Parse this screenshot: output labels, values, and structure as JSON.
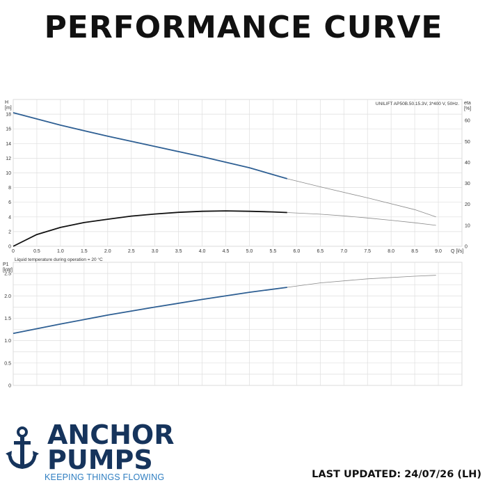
{
  "heading": "PERFORMANCE CURVE",
  "footer": {
    "brand_line1": "ANCHOR",
    "brand_line2": "PUMPS",
    "tagline": "KEEPING THINGS FLOWING",
    "last_updated": "LAST UPDATED: 24/07/26 (LH)",
    "brand_color": "#16345c",
    "tagline_color": "#2f7ec1"
  },
  "chart_data": [
    {
      "type": "line",
      "title": "UNILIFT AP50B.50.15.3V, 3*400 V, 50Hz.",
      "xlabel": "Q [l/s]",
      "ylabel_left_symbol": "H",
      "ylabel_left_unit": "[m]",
      "ylabel_right_symbol": "eta",
      "ylabel_right_unit": "[%]",
      "xlim": [
        0,
        9.5
      ],
      "ylim_left": [
        0,
        20
      ],
      "ylim_right": [
        0,
        70
      ],
      "x_ticks": [
        "0",
        "0.5",
        "1.0",
        "1.5",
        "2.0",
        "2.5",
        "3.0",
        "3.5",
        "4.0",
        "4.5",
        "5.0",
        "5.5",
        "6.0",
        "6.5",
        "7.0",
        "7.5",
        "8.0",
        "8.5",
        "9.0"
      ],
      "y_ticks_left": [
        "0",
        "2",
        "4",
        "6",
        "8",
        "10",
        "12",
        "14",
        "16",
        "18"
      ],
      "y_ticks_right": [
        "0",
        "10",
        "20",
        "30",
        "40",
        "50",
        "60"
      ],
      "note": "Liquid temperature during operation = 20 °C",
      "grid": true,
      "series": [
        {
          "axis": "left",
          "color": "#2e5f93",
          "operating_range_end": 5.8,
          "x": [
            0,
            1,
            2,
            3,
            4,
            5,
            5.8,
            6.5,
            7.5,
            8.5,
            8.95
          ],
          "y": [
            18.2,
            16.5,
            15.0,
            13.6,
            12.2,
            10.7,
            9.2,
            8.1,
            6.6,
            5.0,
            4.0
          ]
        },
        {
          "axis": "right",
          "color": "#111111",
          "operating_range_end": 5.8,
          "x": [
            0,
            0.5,
            1,
            1.5,
            2,
            2.5,
            3,
            3.5,
            4,
            4.5,
            5,
            5.5,
            5.8,
            6.5,
            7,
            7.5,
            8,
            8.5,
            8.95
          ],
          "y": [
            0,
            5.6,
            9.0,
            11.3,
            12.9,
            14.4,
            15.4,
            16.2,
            16.7,
            16.9,
            16.7,
            16.4,
            16.1,
            15.3,
            14.5,
            13.5,
            12.4,
            11.2,
            10.0
          ]
        }
      ]
    },
    {
      "type": "line",
      "xlim": [
        0,
        9.5
      ],
      "ylim": [
        0,
        2.75
      ],
      "ylabel_symbol": "P1",
      "ylabel_unit": "[kW]",
      "y_ticks": [
        "0",
        "0.5",
        "1.0",
        "1.5",
        "2.0",
        "2.5"
      ],
      "grid": true,
      "series": [
        {
          "color": "#2e5f93",
          "operating_range_end": 5.8,
          "x": [
            0,
            1,
            2,
            3,
            4,
            5,
            5.8,
            6.5,
            7.5,
            8.5,
            8.95
          ],
          "y": [
            1.16,
            1.37,
            1.57,
            1.75,
            1.92,
            2.08,
            2.19,
            2.29,
            2.38,
            2.44,
            2.46
          ]
        }
      ]
    }
  ]
}
